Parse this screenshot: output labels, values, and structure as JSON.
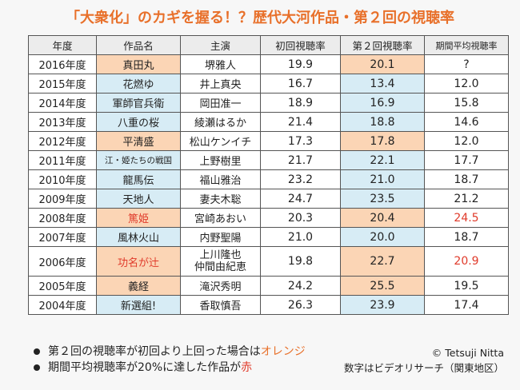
{
  "title": "「大衆化」のカギを握る！？歴代大河作品・第２回の視聴率",
  "table": {
    "headers": {
      "year": "年度",
      "work": "作品名",
      "lead": "主演",
      "first": "初回視聴率",
      "second": "第２回視聴率",
      "average": "期間平均視聴率"
    },
    "rows": [
      {
        "year": "2016年度",
        "work": "真田丸",
        "lead1": "堺雅人",
        "lead2": "",
        "first": "19.9",
        "second": "20.1",
        "average": "?"
      },
      {
        "year": "2015年度",
        "work": "花燃ゆ",
        "lead1": "井上真央",
        "lead2": "",
        "first": "16.7",
        "second": "13.4",
        "average": "12.0"
      },
      {
        "year": "2014年度",
        "work": "軍師官兵衛",
        "lead1": "岡田准一",
        "lead2": "",
        "first": "18.9",
        "second": "16.9",
        "average": "15.8"
      },
      {
        "year": "2013年度",
        "work": "八重の桜",
        "lead1": "綾瀬はるか",
        "lead2": "",
        "first": "21.4",
        "second": "18.8",
        "average": "14.6"
      },
      {
        "year": "2012年度",
        "work": "平清盛",
        "lead1": "松山ケンイチ",
        "lead2": "",
        "first": "17.3",
        "second": "17.8",
        "average": "12.0"
      },
      {
        "year": "2011年度",
        "work": "江・姫たちの戦国",
        "lead1": "上野樹里",
        "lead2": "",
        "first": "21.7",
        "second": "22.1",
        "average": "17.7"
      },
      {
        "year": "2010年度",
        "work": "龍馬伝",
        "lead1": "福山雅治",
        "lead2": "",
        "first": "23.2",
        "second": "21.0",
        "average": "18.7"
      },
      {
        "year": "2009年度",
        "work": "天地人",
        "lead1": "妻夫木聡",
        "lead2": "",
        "first": "24.7",
        "second": "23.5",
        "average": "21.2"
      },
      {
        "year": "2008年度",
        "work": "篤姫",
        "lead1": "宮崎あおい",
        "lead2": "",
        "first": "20.3",
        "second": "20.4",
        "average": "24.5"
      },
      {
        "year": "2007年度",
        "work": "風林火山",
        "lead1": "内野聖陽",
        "lead2": "",
        "first": "21.0",
        "second": "20.0",
        "average": "18.7"
      },
      {
        "year": "2006年度",
        "work": "功名が辻",
        "lead1": "上川隆也",
        "lead2": "仲間由紀恵",
        "first": "19.8",
        "second": "22.7",
        "average": "20.9"
      },
      {
        "year": "2005年度",
        "work": "義経",
        "lead1": "滝沢秀明",
        "lead2": "",
        "first": "24.2",
        "second": "25.5",
        "average": "19.5"
      },
      {
        "year": "2004年度",
        "work": "新選組!",
        "lead1": "香取慎吾",
        "lead2": "",
        "first": "26.3",
        "second": "23.9",
        "average": "17.4"
      }
    ]
  },
  "notes": {
    "note1_text": "第２回の視聴率が初回より上回った場合は",
    "note1_highlight": "オレンジ",
    "note2_text": "期間平均視聴率が20%に達した作品が",
    "note2_highlight": "赤"
  },
  "credit": {
    "author": "© Tetsuji Nitta",
    "source": "数字はビデオリサーチ（関東地区）"
  },
  "colors": {
    "title": "#e8702a",
    "orange_fill": "#fbd5b5",
    "blue_fill": "#d7ecf5",
    "red_text": "#e03a2a"
  }
}
